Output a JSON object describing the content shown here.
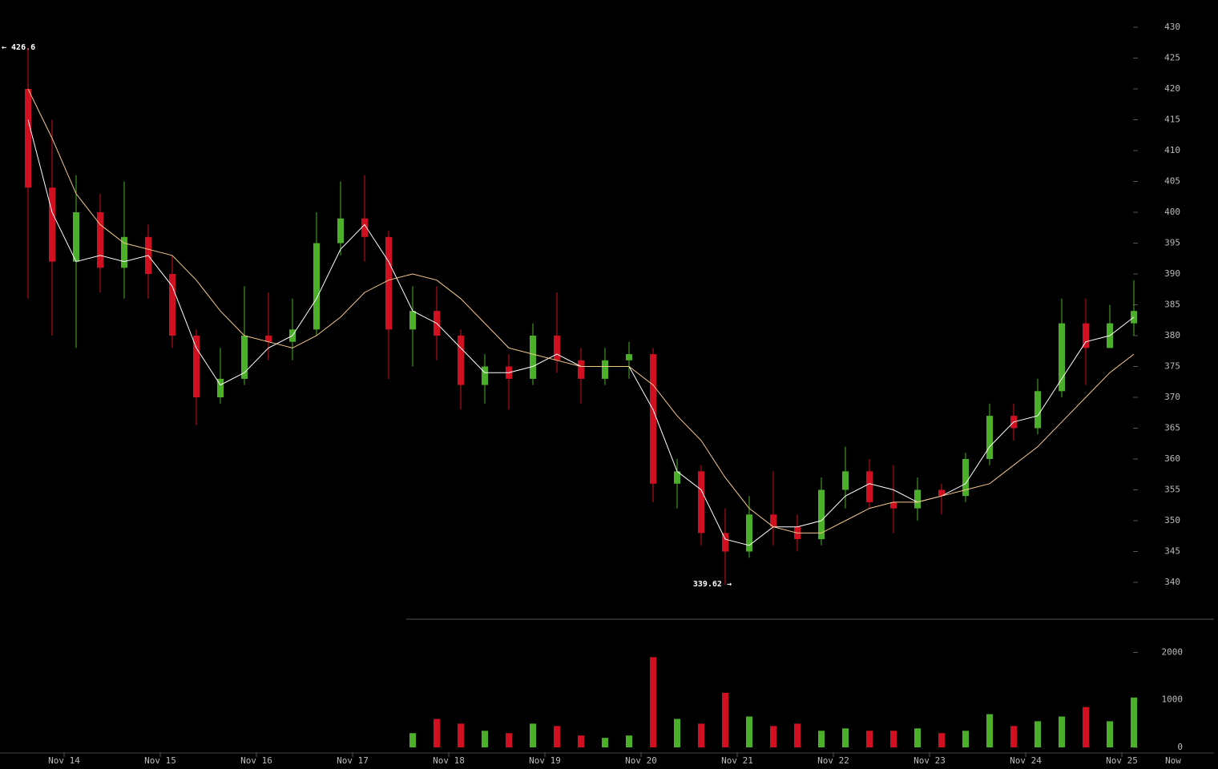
{
  "chart_data": {
    "type": "candlestick",
    "categories": [
      null,
      null,
      "Nov 14",
      null,
      null,
      null,
      "Nov 15",
      null,
      null,
      null,
      "Nov 16",
      null,
      null,
      null,
      "Nov 17",
      null,
      null,
      null,
      "Nov 18",
      null,
      null,
      null,
      "Nov 19",
      null,
      null,
      null,
      "Nov 20",
      null,
      null,
      null,
      "Nov 21",
      null,
      null,
      null,
      "Nov 22",
      null,
      null,
      null,
      "Nov 23",
      null,
      null,
      null,
      "Nov 24",
      null,
      null,
      null,
      "Nov 25"
    ],
    "open": [
      420,
      404,
      392,
      400,
      391,
      396,
      390,
      380,
      370,
      373,
      380,
      379,
      381,
      395,
      399,
      396,
      381,
      384,
      380,
      372,
      375,
      373,
      380,
      376,
      373,
      376,
      377,
      356,
      358,
      348,
      345,
      351,
      349,
      347,
      355,
      358,
      353,
      352,
      355,
      354,
      360,
      367,
      365,
      371,
      382,
      378,
      382
    ],
    "high": [
      426.6,
      415,
      406,
      403,
      405,
      398,
      393,
      381,
      378,
      388,
      387,
      386,
      400,
      405,
      406,
      397,
      388,
      388,
      381,
      377,
      377,
      382,
      387,
      378,
      378,
      379,
      378,
      360,
      359,
      352,
      354,
      358,
      351,
      357,
      362,
      360,
      359,
      357,
      356,
      361,
      369,
      369,
      373,
      386,
      386,
      385,
      389
    ],
    "low": [
      386,
      380,
      378,
      387,
      386,
      386,
      378,
      365.5,
      369,
      372,
      376,
      376,
      380,
      393,
      392,
      373,
      375,
      376,
      368,
      369,
      368,
      372,
      374,
      369,
      372,
      373,
      353,
      352,
      346,
      339.62,
      344,
      346,
      345,
      346,
      352,
      352,
      348,
      350,
      351,
      353,
      359,
      363,
      364,
      370,
      372,
      378,
      380
    ],
    "close": [
      404,
      392,
      400,
      391,
      396,
      390,
      380,
      370,
      373,
      380,
      379,
      381,
      395,
      399,
      396,
      381,
      384,
      380,
      372,
      375,
      373,
      380,
      376,
      373,
      376,
      377,
      356,
      358,
      348,
      345,
      351,
      349,
      347,
      355,
      358,
      353,
      352,
      355,
      354,
      360,
      367,
      365,
      371,
      382,
      378,
      382,
      384
    ],
    "volume": [
      null,
      null,
      null,
      null,
      null,
      null,
      null,
      null,
      null,
      null,
      null,
      null,
      null,
      null,
      null,
      null,
      300,
      600,
      500,
      350,
      300,
      500,
      450,
      250,
      200,
      250,
      1900,
      600,
      500,
      1150,
      650,
      450,
      500,
      350,
      400,
      350,
      350,
      400,
      300,
      350,
      700,
      450,
      550,
      650,
      850,
      550,
      1050
    ],
    "overlays": [
      {
        "color": "#ffffff",
        "values": [
          415,
          400,
          392,
          393,
          392,
          393,
          388,
          378,
          372,
          374,
          378,
          380,
          386,
          394,
          398,
          392,
          384,
          382,
          378,
          374,
          374,
          375,
          377,
          375,
          375,
          375,
          368,
          358,
          355,
          347,
          346,
          349,
          349,
          350,
          354,
          356,
          355,
          353,
          354,
          356,
          362,
          366,
          367,
          373,
          379,
          380,
          383
        ]
      },
      {
        "color": "#f3c98b",
        "values": [
          420,
          412,
          403,
          398,
          395,
          394,
          393,
          389,
          384,
          380,
          379,
          378,
          380,
          383,
          387,
          389,
          390,
          389,
          386,
          382,
          378,
          377,
          376,
          375,
          375,
          375,
          372,
          367,
          363,
          357,
          352,
          349,
          348,
          348,
          350,
          352,
          353,
          353,
          354,
          355,
          356,
          359,
          362,
          366,
          370,
          374,
          377
        ]
      }
    ],
    "up_color": "#4caf2a",
    "down_color": "#d01020",
    "ylim": [
      338,
      432
    ],
    "yticks": [
      340,
      345,
      350,
      355,
      360,
      365,
      370,
      375,
      380,
      385,
      390,
      395,
      400,
      405,
      410,
      415,
      420,
      425,
      430
    ],
    "volume_ylim": [
      0,
      2700
    ],
    "volume_yticks": [
      0,
      1000,
      2000
    ],
    "high_label": "← 426.6",
    "low_label": "339.62 →",
    "now_label": "Now"
  }
}
